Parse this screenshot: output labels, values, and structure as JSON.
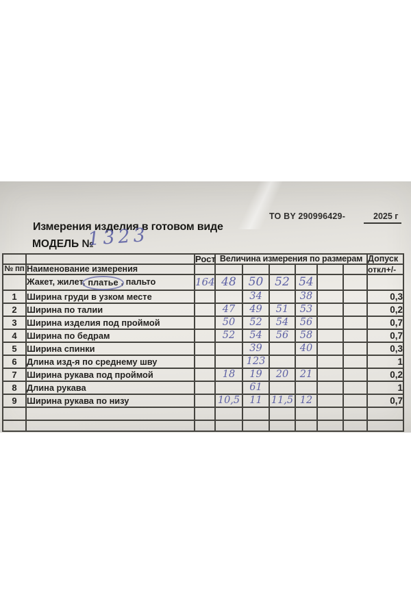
{
  "document": {
    "to_number": "ТО BY 290996429-",
    "year": "2025 г",
    "title": "Измерения изделия в готовом виде",
    "model_label": "МОДЕЛЬ №",
    "model_number_handwritten": "1323"
  },
  "table": {
    "headers": {
      "num": "№ пп",
      "name": "Наименование измерения",
      "rost": "Рост",
      "sizes_group": "Величина измерения по размерам",
      "tolerance_line1": "Допуск",
      "tolerance_line2": "откл+/-"
    },
    "garment_row": {
      "label_prefix": "Жакет, жилет,",
      "label_circled": "платье",
      "label_suffix": ", пальто",
      "rost": "164",
      "sizes": [
        "48",
        "50",
        "52",
        "54",
        "",
        ""
      ]
    },
    "rows": [
      {
        "num": "1",
        "name": "Ширина груди в узком месте",
        "rost": "",
        "values": [
          "",
          "34",
          "",
          "38",
          "",
          ""
        ],
        "tol": "0,3"
      },
      {
        "num": "2",
        "name": "Ширина по талии",
        "rost": "",
        "values": [
          "47",
          "49",
          "51",
          "53",
          "",
          ""
        ],
        "tol": "0,2"
      },
      {
        "num": "3",
        "name": "Ширина изделия под проймой",
        "rost": "",
        "values": [
          "50",
          "52",
          "54",
          "56",
          "",
          ""
        ],
        "tol": "0,7"
      },
      {
        "num": "4",
        "name": "Ширина по бедрам",
        "rost": "",
        "values": [
          "52",
          "54",
          "56",
          "58",
          "",
          ""
        ],
        "tol": "0,7"
      },
      {
        "num": "5",
        "name": "Ширина спинки",
        "rost": "",
        "values": [
          "",
          "39",
          "",
          "40",
          "",
          ""
        ],
        "tol": "0,3"
      },
      {
        "num": "6",
        "name": "Длина изд-я по среднему шву",
        "rost": "",
        "values": [
          "",
          "123",
          "",
          "",
          "",
          ""
        ],
        "tol": "1"
      },
      {
        "num": "7",
        "name": "Ширина рукава под проймой",
        "rost": "",
        "values": [
          "18",
          "19",
          "20",
          "21",
          "",
          ""
        ],
        "tol": "0,2"
      },
      {
        "num": "8",
        "name": "Длина рукава",
        "rost": "",
        "values": [
          "",
          "61",
          "",
          "",
          "",
          ""
        ],
        "tol": "1"
      },
      {
        "num": "9",
        "name": "Ширина рукава по низу",
        "rost": "",
        "values": [
          "10,5",
          "11",
          "11,5",
          "12",
          "",
          ""
        ],
        "tol": "0,7"
      }
    ]
  },
  "colors": {
    "ink_blue": "#5d61a4",
    "grid_line": "#44433e",
    "paper": "#e9e7e2"
  }
}
